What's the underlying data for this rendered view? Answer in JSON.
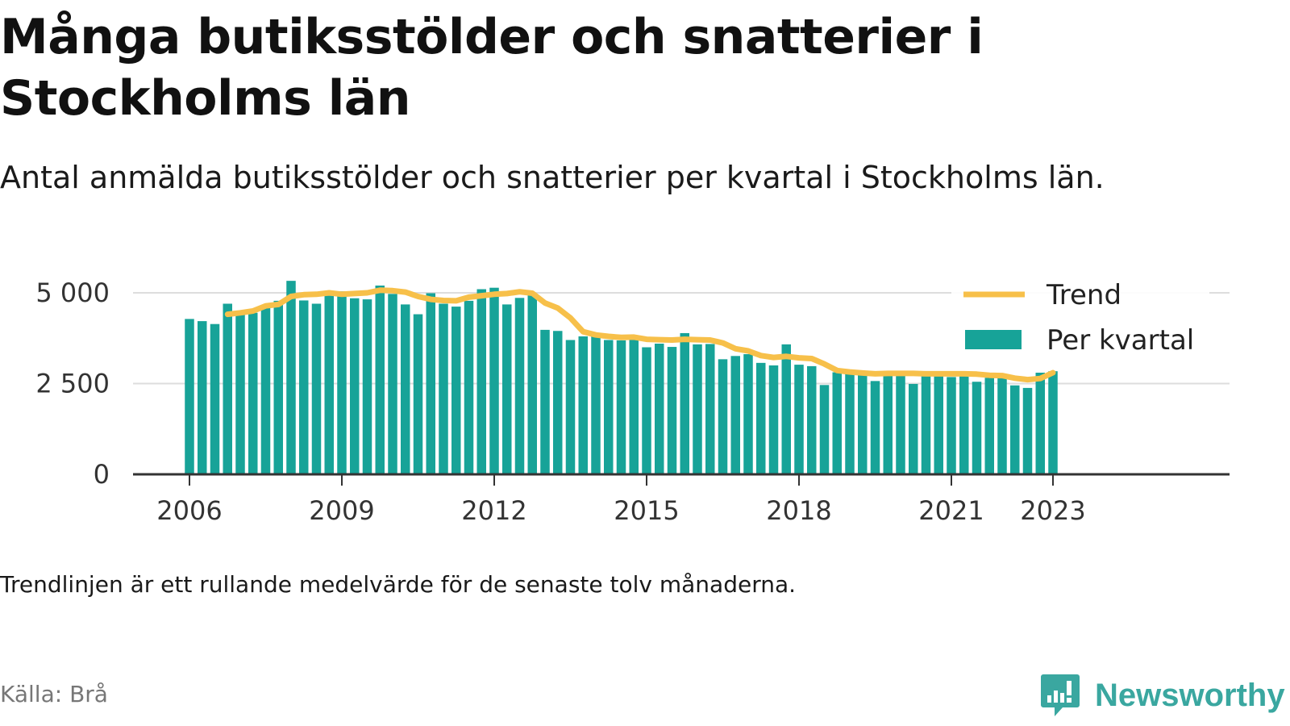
{
  "title": "Många butiksstölder och snatterier i Stockholms län",
  "subtitle": "Antal anmälda butiksstölder och snatterier per kvartal i Stockholms län.",
  "note": "Trendlinjen är ett rullande medelvärde för de senaste tolv månaderna.",
  "source": "Källa: Brå",
  "brand": "Newsworthy",
  "colors": {
    "bars": "#17a398",
    "trend": "#f7c04a",
    "grid": "#dddddd",
    "axis": "#333333",
    "brand": "#3aa7a0"
  },
  "chart_data": {
    "type": "bar",
    "ylim": [
      0,
      5500
    ],
    "yticks": [
      0,
      2500,
      5000
    ],
    "ytick_labels": [
      "0",
      "2 500",
      "5 000"
    ],
    "xtick_labels": [
      "2006",
      "2009",
      "2012",
      "2015",
      "2018",
      "2021",
      "2023"
    ],
    "grid": true,
    "legend_position": "top-right",
    "categories": [
      "2006 Q1",
      "2006 Q2",
      "2006 Q3",
      "2006 Q4",
      "2007 Q1",
      "2007 Q2",
      "2007 Q3",
      "2007 Q4",
      "2008 Q1",
      "2008 Q2",
      "2008 Q3",
      "2008 Q4",
      "2009 Q1",
      "2009 Q2",
      "2009 Q3",
      "2009 Q4",
      "2010 Q1",
      "2010 Q2",
      "2010 Q3",
      "2010 Q4",
      "2011 Q1",
      "2011 Q2",
      "2011 Q3",
      "2011 Q4",
      "2012 Q1",
      "2012 Q2",
      "2012 Q3",
      "2012 Q4",
      "2013 Q1",
      "2013 Q2",
      "2013 Q3",
      "2013 Q4",
      "2014 Q1",
      "2014 Q2",
      "2014 Q3",
      "2014 Q4",
      "2015 Q1",
      "2015 Q2",
      "2015 Q3",
      "2015 Q4",
      "2016 Q1",
      "2016 Q2",
      "2016 Q3",
      "2016 Q4",
      "2017 Q1",
      "2017 Q2",
      "2017 Q3",
      "2017 Q4",
      "2018 Q1",
      "2018 Q2",
      "2018 Q3",
      "2018 Q4",
      "2019 Q1",
      "2019 Q2",
      "2019 Q3",
      "2019 Q4",
      "2020 Q1",
      "2020 Q2",
      "2020 Q3",
      "2020 Q4",
      "2021 Q1",
      "2021 Q2",
      "2021 Q3",
      "2021 Q4",
      "2022 Q1",
      "2022 Q2",
      "2022 Q3",
      "2022 Q4",
      "2023 Q1"
    ],
    "series": [
      {
        "name": "Per kvartal",
        "values": [
          4280,
          4220,
          4140,
          4700,
          4390,
          4450,
          4600,
          4780,
          5330,
          4790,
          4700,
          4920,
          5040,
          4850,
          4820,
          5200,
          4970,
          4680,
          4410,
          4990,
          4700,
          4620,
          4780,
          5100,
          5140,
          4680,
          4860,
          4930,
          3980,
          3950,
          3700,
          3800,
          3820,
          3700,
          3690,
          3700,
          3500,
          3600,
          3510,
          3890,
          3580,
          3590,
          3170,
          3260,
          3310,
          3070,
          3000,
          3580,
          3020,
          2980,
          2460,
          2810,
          2780,
          2760,
          2570,
          2770,
          2820,
          2490,
          2790,
          2790,
          2680,
          2750,
          2550,
          2660,
          2700,
          2450,
          2380,
          2800,
          2840
        ]
      },
      {
        "name": "Trend",
        "values": [
          null,
          null,
          null,
          4410,
          4450,
          4500,
          4640,
          4680,
          4900,
          4950,
          4960,
          5000,
          4960,
          4980,
          5000,
          5070,
          5060,
          5020,
          4900,
          4820,
          4790,
          4780,
          4880,
          4920,
          4960,
          4980,
          5030,
          4990,
          4720,
          4580,
          4310,
          3930,
          3840,
          3800,
          3770,
          3780,
          3720,
          3710,
          3700,
          3720,
          3710,
          3700,
          3620,
          3460,
          3400,
          3270,
          3220,
          3250,
          3210,
          3190,
          3040,
          2860,
          2820,
          2790,
          2770,
          2780,
          2780,
          2780,
          2770,
          2770,
          2770,
          2770,
          2760,
          2730,
          2720,
          2650,
          2610,
          2640,
          2800
        ]
      }
    ]
  }
}
